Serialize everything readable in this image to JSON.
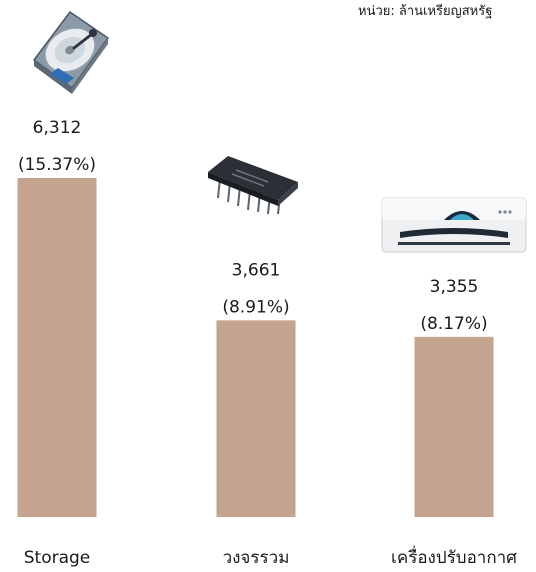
{
  "note": "หน่วย: ล้านเหรียญสหรัฐ",
  "chart_data": {
    "type": "bar",
    "unit": "หน่วย: ล้านเหรียญสหรัฐ",
    "categories": [
      "Storage",
      "วงจรรวม",
      "เครื่องปรับอากาศ"
    ],
    "values": [
      6312,
      3661,
      3355
    ],
    "shares": [
      "(15.37%)",
      "(8.91%)",
      "(8.17%)"
    ],
    "value_labels": [
      "6,312",
      "3,661",
      "3,355"
    ],
    "icons": [
      "hard-disk-icon",
      "microchip-icon",
      "air-conditioner-icon"
    ],
    "bar_color": "#c4a48e",
    "ylim": [
      0,
      6312
    ],
    "grid": false,
    "legend": "none"
  }
}
